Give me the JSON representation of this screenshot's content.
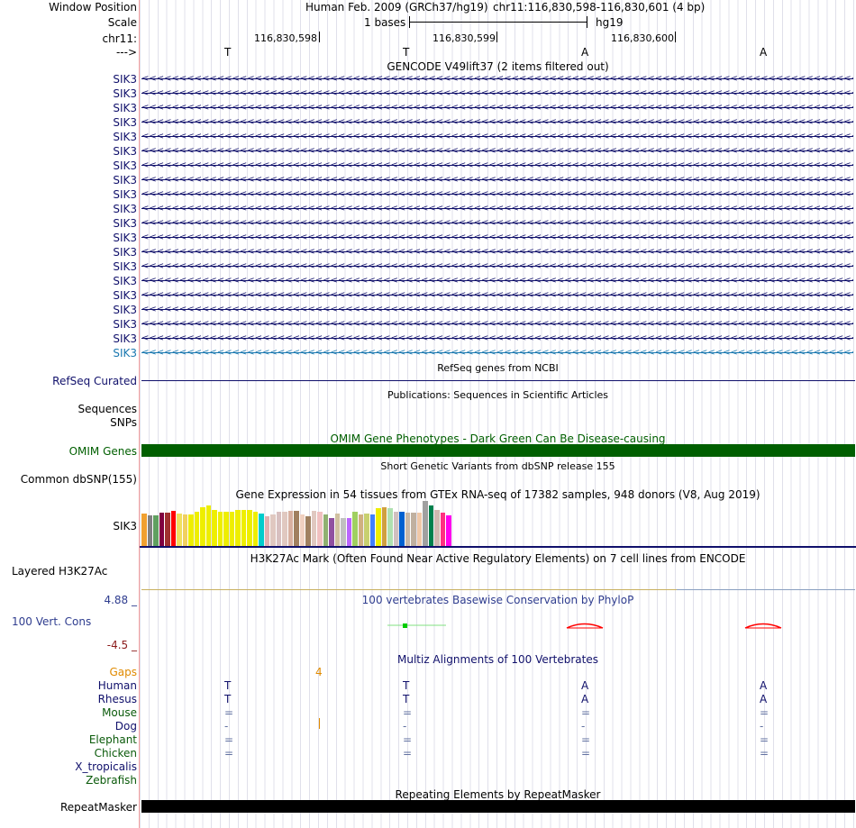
{
  "header": {
    "window_position_label": "Window Position",
    "scale_label": "Scale",
    "chrom_label": "chr11:",
    "strand_label": "--->",
    "assembly": "Human Feb. 2009 (GRCh37/hg19)",
    "position": "chr11:116,830,598-116,830,601 (4 bp)",
    "scale_text": "1 bases",
    "db": "hg19",
    "coords": [
      "116,830,598",
      "116,830,599",
      "116,830,600"
    ],
    "bases": [
      "T",
      "T",
      "A",
      "A"
    ]
  },
  "gencode": {
    "title": "GENCODE V49lift37 (2 items filtered out)",
    "genes": [
      "SIK3",
      "SIK3",
      "SIK3",
      "SIK3",
      "SIK3",
      "SIK3",
      "SIK3",
      "SIK3",
      "SIK3",
      "SIK3",
      "SIK3",
      "SIK3",
      "SIK3",
      "SIK3",
      "SIK3",
      "SIK3",
      "SIK3",
      "SIK3",
      "SIK3",
      "SIK3"
    ],
    "gene_color": "#10106b",
    "last_gene_color": "#1a78b0",
    "arrow_glyph": "<"
  },
  "refseq": {
    "title": "RefSeq genes from NCBI",
    "label": "RefSeq Curated"
  },
  "publications": {
    "title": "Publications: Sequences in Scientific Articles",
    "label_a": "Sequences",
    "label_b": "SNPs"
  },
  "omim": {
    "title": "OMIM Gene Phenotypes - Dark Green Can Be Disease-causing",
    "label": "OMIM Genes",
    "color": "#005f00"
  },
  "dbsnp": {
    "title": "Short Genetic Variants from dbSNP release 155",
    "label": "Common dbSNP(155)"
  },
  "gtex": {
    "title": "Gene Expression in 54 tissues from GTEx RNA-seq of 17382 samples, 948 donors (V8, Aug 2019)",
    "label": "SIK3",
    "bars": [
      {
        "color": "#f0a030",
        "v": 0.72
      },
      {
        "color": "#808080",
        "v": 0.68
      },
      {
        "color": "#60a060",
        "v": 0.68
      },
      {
        "color": "#800040",
        "v": 0.74
      },
      {
        "color": "#a03030",
        "v": 0.74
      },
      {
        "color": "#ff0000",
        "v": 0.78
      },
      {
        "color": "#f0e060",
        "v": 0.72
      },
      {
        "color": "#f0d060",
        "v": 0.7
      },
      {
        "color": "#eeee00",
        "v": 0.7
      },
      {
        "color": "#eeee00",
        "v": 0.76
      },
      {
        "color": "#eeee00",
        "v": 0.86
      },
      {
        "color": "#eeee00",
        "v": 0.9
      },
      {
        "color": "#eeee00",
        "v": 0.8
      },
      {
        "color": "#eeee00",
        "v": 0.76
      },
      {
        "color": "#eeee00",
        "v": 0.76
      },
      {
        "color": "#eeee00",
        "v": 0.76
      },
      {
        "color": "#eeee00",
        "v": 0.8
      },
      {
        "color": "#eeee00",
        "v": 0.8
      },
      {
        "color": "#eeee00",
        "v": 0.8
      },
      {
        "color": "#eeee00",
        "v": 0.76
      },
      {
        "color": "#00cccc",
        "v": 0.72
      },
      {
        "color": "#e0b0b0",
        "v": 0.66
      },
      {
        "color": "#e0c8c0",
        "v": 0.7
      },
      {
        "color": "#d8c0c0",
        "v": 0.76
      },
      {
        "color": "#e0c8c0",
        "v": 0.76
      },
      {
        "color": "#d8b0a0",
        "v": 0.78
      },
      {
        "color": "#a08060",
        "v": 0.78
      },
      {
        "color": "#f0d0c0",
        "v": 0.7
      },
      {
        "color": "#a08060",
        "v": 0.66
      },
      {
        "color": "#e0c8c0",
        "v": 0.78
      },
      {
        "color": "#f0c0c0",
        "v": 0.76
      },
      {
        "color": "#90b070",
        "v": 0.7
      },
      {
        "color": "#9050a0",
        "v": 0.62
      },
      {
        "color": "#d0c0a0",
        "v": 0.72
      },
      {
        "color": "#c0c0c0",
        "v": 0.62
      },
      {
        "color": "#bb66ff",
        "v": 0.62
      },
      {
        "color": "#a0d060",
        "v": 0.76
      },
      {
        "color": "#d0b080",
        "v": 0.7
      },
      {
        "color": "#c8d070",
        "v": 0.72
      },
      {
        "color": "#4080ff",
        "v": 0.7
      },
      {
        "color": "#eeee00",
        "v": 0.84
      },
      {
        "color": "#d0a040",
        "v": 0.86
      },
      {
        "color": "#b0e0b0",
        "v": 0.84
      },
      {
        "color": "#d0c0c0",
        "v": 0.76
      },
      {
        "color": "#0060d0",
        "v": 0.76
      },
      {
        "color": "#c8b8a8",
        "v": 0.74
      },
      {
        "color": "#c0b0a0",
        "v": 0.74
      },
      {
        "color": "#f0c8a8",
        "v": 0.74
      },
      {
        "color": "#a0a0a0",
        "v": 1.0
      },
      {
        "color": "#00804c",
        "v": 0.9
      },
      {
        "color": "#d0b8b0",
        "v": 0.8
      },
      {
        "color": "#ff3080",
        "v": 0.74
      },
      {
        "color": "#ff00ee",
        "v": 0.68
      }
    ]
  },
  "h3k27ac": {
    "title": "H3K27Ac Mark (Often Found Near Active Regulatory Elements) on 7 cell lines from ENCODE",
    "label": "Layered H3K27Ac"
  },
  "phylop": {
    "title": "100 vertebrates Basewise Conservation by PhyloP",
    "label": "100 Vert. Cons",
    "max_label": "4.88 _",
    "min_label": "-4.5 _"
  },
  "multiz": {
    "title": "Multiz Alignments of 100 Vertebrates",
    "gaps_label": "Gaps",
    "gap_count": "4",
    "species": [
      {
        "name": "Human",
        "color": "#10106b",
        "bases": [
          "T",
          "T",
          "A",
          "A"
        ]
      },
      {
        "name": "Rhesus",
        "color": "#10106b",
        "bases": [
          "T",
          "T",
          "A",
          "A"
        ]
      },
      {
        "name": "Mouse",
        "color": "#0a5a0a",
        "bases": [
          "=",
          "=",
          "=",
          "="
        ]
      },
      {
        "name": "Dog",
        "color": "#10106b",
        "bases": [
          "-",
          "-",
          "-",
          "-"
        ]
      },
      {
        "name": "Elephant",
        "color": "#0a5a0a",
        "bases": [
          "=",
          "=",
          "=",
          "="
        ]
      },
      {
        "name": "Chicken",
        "color": "#0a5a0a",
        "bases": [
          "=",
          "=",
          "=",
          "="
        ]
      },
      {
        "name": "X_tropicalis",
        "color": "#10106b",
        "bases": [
          "",
          "",
          "",
          ""
        ]
      },
      {
        "name": "Zebrafish",
        "color": "#0a5a0a",
        "bases": [
          "",
          "",
          "",
          ""
        ]
      }
    ]
  },
  "repeatmasker": {
    "title": "Repeating Elements by RepeatMasker",
    "label": "RepeatMasker"
  }
}
